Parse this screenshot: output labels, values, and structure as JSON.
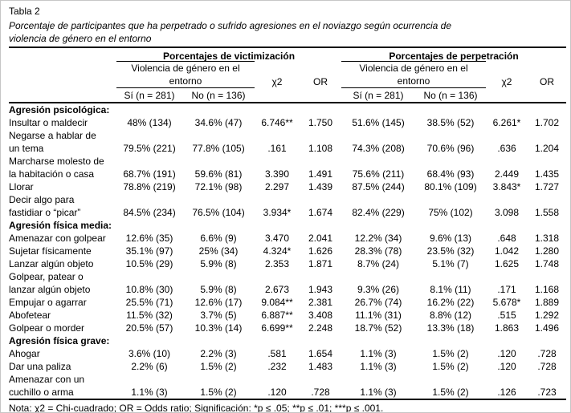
{
  "page": {
    "table_label": "Tabla 2",
    "caption": "Porcentaje de participantes que ha perpetrado o sufrido agresiones en el noviazgo según ocurrencia de\nviolencia de género en el entorno",
    "note": "Nota: χ2 = Chi-cuadrado; OR = Odds ratio; Significación: *p ≤ .05; **p ≤ .01; ***p ≤ .001."
  },
  "header": {
    "group_victimizacion": "Porcentajes de victimización",
    "group_perpetracion": "Porcentajes de perpetración",
    "subgroup": "Violencia de género en el\nentorno",
    "col_si": "Sí (n = 281)",
    "col_no": "No (n = 136)",
    "col_chi": "χ2",
    "col_or": "OR"
  },
  "table": {
    "rows": [
      {
        "type": "section",
        "label": "Agresión psicológica:"
      },
      {
        "type": "item",
        "label": "Insultar o maldecir",
        "values": [
          "48% (134)",
          "34.6% (47)",
          "6.746**",
          "1.750",
          "51.6% (145)",
          "38.5% (52)",
          "6.261*",
          "1.702"
        ]
      },
      {
        "type": "item",
        "label": "Negarse a hablar de\nun tema",
        "values": [
          "79.5% (221)",
          "77.8% (105)",
          ".161",
          "1.108",
          "74.3% (208)",
          "70.6% (96)",
          ".636",
          "1.204"
        ]
      },
      {
        "type": "item",
        "label": "Marcharse molesto de\nla habitación o casa",
        "values": [
          "68.7% (191)",
          "59.6% (81)",
          "3.390",
          "1.491",
          "75.6% (211)",
          "68.4% (93)",
          "2.449",
          "1.435"
        ]
      },
      {
        "type": "item",
        "label": "Llorar",
        "values": [
          "78.8% (219)",
          "72.1% (98)",
          "2.297",
          "1.439",
          "87.5% (244)",
          "80.1% (109)",
          "3.843*",
          "1.727"
        ]
      },
      {
        "type": "item",
        "label": "Decir algo para\nfastidiar o “picar”",
        "values": [
          "84.5% (234)",
          "76.5% (104)",
          "3.934*",
          "1.674",
          "82.4% (229)",
          "75% (102)",
          "3.098",
          "1.558"
        ]
      },
      {
        "type": "section",
        "label": "Agresión física media:"
      },
      {
        "type": "item",
        "label": "Amenazar con golpear",
        "values": [
          "12.6% (35)",
          "6.6% (9)",
          "3.470",
          "2.041",
          "12.2% (34)",
          "9.6% (13)",
          ".648",
          "1.318"
        ]
      },
      {
        "type": "item",
        "label": "Sujetar físicamente",
        "values": [
          "35.1% (97)",
          "25% (34)",
          "4.324*",
          "1.626",
          "28.3% (78)",
          "23.5% (32)",
          "1.042",
          "1.280"
        ]
      },
      {
        "type": "item",
        "label": "Lanzar algún objeto",
        "values": [
          "10.5% (29)",
          "5.9% (8)",
          "2.353",
          "1.871",
          "8.7% (24)",
          "5.1% (7)",
          "1.625",
          "1.748"
        ]
      },
      {
        "type": "item",
        "label": "Golpear, patear o\nlanzar algún objeto",
        "values": [
          "10.8% (30)",
          "5.9% (8)",
          "2.673",
          "1.943",
          "9.3% (26)",
          "8.1% (11)",
          ".171",
          "1.168"
        ]
      },
      {
        "type": "item",
        "label": "Empujar o agarrar",
        "values": [
          "25.5% (71)",
          "12.6% (17)",
          "9.084**",
          "2.381",
          "26.7% (74)",
          "16.2% (22)",
          "5.678*",
          "1.889"
        ]
      },
      {
        "type": "item",
        "label": "Abofetear",
        "values": [
          "11.5% (32)",
          "3.7% (5)",
          "6.887**",
          "3.408",
          "11.1% (31)",
          "8.8% (12)",
          ".515",
          "1.292"
        ]
      },
      {
        "type": "item",
        "label": "Golpear o morder",
        "values": [
          "20.5% (57)",
          "10.3% (14)",
          "6.699**",
          "2.248",
          "18.7% (52)",
          "13.3% (18)",
          "1.863",
          "1.496"
        ]
      },
      {
        "type": "section",
        "label": "Agresión física grave:"
      },
      {
        "type": "item",
        "label": "Ahogar",
        "values": [
          "3.6% (10)",
          "2.2% (3)",
          ".581",
          "1.654",
          "1.1% (3)",
          "1.5% (2)",
          ".120",
          ".728"
        ]
      },
      {
        "type": "item",
        "label": "Dar una paliza",
        "values": [
          "2.2% (6)",
          "1.5% (2)",
          ".232",
          "1.483",
          "1.1% (3)",
          "1.5% (2)",
          ".120",
          ".728"
        ]
      },
      {
        "type": "item",
        "label": "Amenazar con un\ncuchillo o arma",
        "values": [
          "1.1% (3)",
          "1.5% (2)",
          ".120",
          ".728",
          "1.1% (3)",
          "1.5% (2)",
          ".126",
          ".723"
        ]
      }
    ]
  }
}
